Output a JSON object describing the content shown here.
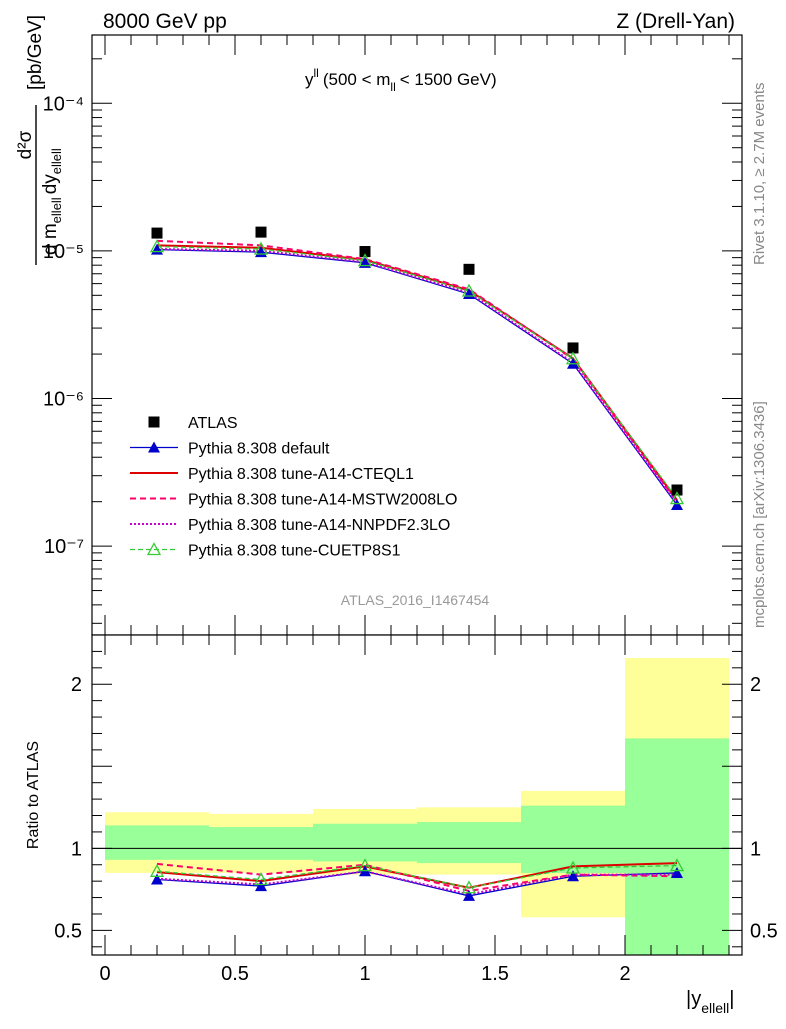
{
  "header": {
    "left": "8000 GeV pp",
    "right": "Z (Drell-Yan)"
  },
  "side_labels": {
    "rivet": "Rivet 3.1.10, ≥ 2.7M events",
    "mcplots": "mcplots.cern.ch [arXiv:1306.3436]"
  },
  "watermark": "ATLAS_2016_I1467454",
  "colors": {
    "atlas": "#000000",
    "default": "#0000cc",
    "cteql1": "#dd0000",
    "mstw": "#ff0066",
    "nnpdf": "#cc00cc",
    "cuetp8s1": "#33cc33",
    "band_yellow": "#ffff99",
    "band_green": "#99ff99"
  },
  "chart_data": [
    {
      "type": "line",
      "panel": "main",
      "title": "y^ll (500 < m_ll < 1500 GeV)",
      "title_parts": {
        "base": "y",
        "sup": "ll",
        "pre": "(500 < m",
        "sub": "ll",
        "post": "< 1500 GeV)"
      },
      "ylabel": "d²σ / d m_ellell dy_ellell [pb/GeV]",
      "ylabel_parts": {
        "num": "d²σ",
        "den_a": "d m",
        "den_sub_a": "ellell",
        "den_b": "dy",
        "den_sub_b": "ellell",
        "unit": "[pb/GeV]"
      },
      "yscale": "log",
      "ylim": [
        2.5e-08,
        0.00029
      ],
      "xlim": [
        -0.05,
        2.45
      ],
      "y_tick_labels": [
        "10⁻⁷",
        "10⁻⁶",
        "10⁻⁵",
        "10⁻⁴"
      ],
      "x": [
        0.2,
        0.6,
        1.0,
        1.4,
        1.8,
        2.2
      ],
      "series": [
        {
          "name": "ATLAS",
          "values": [
            1.32e-05,
            1.34e-05,
            9.9e-06,
            7.5e-06,
            2.2e-06,
            2.4e-07
          ]
        },
        {
          "name": "Pythia 8.308 default",
          "values": [
            1.02e-05,
            9.8e-06,
            8.3e-06,
            5.1e-06,
            1.72e-06,
            1.9e-07
          ]
        },
        {
          "name": "Pythia 8.308 tune-A14-CTEQL1",
          "values": [
            1.09e-05,
            1.05e-05,
            8.7e-06,
            5.4e-06,
            1.87e-06,
            2.05e-07
          ]
        },
        {
          "name": "Pythia 8.308 tune-A14-MSTW2008LO",
          "values": [
            1.17e-05,
            1.09e-05,
            8.8e-06,
            5.5e-06,
            1.85e-06,
            2e-07
          ]
        },
        {
          "name": "Pythia 8.308 tune-A14-NNPDF2.3LO",
          "values": [
            1.03e-05,
            1e-05,
            8.4e-06,
            5.2e-06,
            1.75e-06,
            1.95e-07
          ]
        },
        {
          "name": "Pythia 8.308 tune-CUETP8S1",
          "values": [
            1.07e-05,
            1.03e-05,
            8.6e-06,
            5.35e-06,
            1.86e-06,
            2.1e-07
          ]
        }
      ]
    },
    {
      "type": "line",
      "panel": "ratio",
      "ylabel": "Ratio to ATLAS",
      "xlabel": "|y_ellell|",
      "xlabel_parts": {
        "base": "|y",
        "sub": "ellell",
        "post": "|"
      },
      "ylim": [
        0.35,
        2.3
      ],
      "xlim": [
        -0.05,
        2.45
      ],
      "y_ticks": [
        0.5,
        1,
        2
      ],
      "y_tick_labels": [
        "0.5",
        "1",
        "2"
      ],
      "x_ticks": [
        0,
        0.5,
        1,
        1.5,
        2
      ],
      "x_tick_labels": [
        "0",
        "0.5",
        "1",
        "1.5",
        "2"
      ],
      "bins": [
        [
          0,
          0.4
        ],
        [
          0.4,
          0.8
        ],
        [
          0.8,
          1.2
        ],
        [
          1.2,
          1.6
        ],
        [
          1.6,
          2.0
        ],
        [
          2.0,
          2.4
        ]
      ],
      "band_yellow": [
        [
          0.85,
          1.22
        ],
        [
          0.85,
          1.21
        ],
        [
          0.84,
          1.24
        ],
        [
          0.84,
          1.25
        ],
        [
          0.58,
          1.35
        ],
        [
          0.35,
          2.16
        ]
      ],
      "band_green": [
        [
          0.93,
          1.14
        ],
        [
          0.93,
          1.13
        ],
        [
          0.92,
          1.15
        ],
        [
          0.91,
          1.16
        ],
        [
          0.85,
          1.26
        ],
        [
          0.35,
          1.67
        ]
      ],
      "x": [
        0.2,
        0.6,
        1.0,
        1.4,
        1.8,
        2.2
      ],
      "series": [
        {
          "name": "Pythia 8.308 default",
          "values": [
            0.81,
            0.77,
            0.86,
            0.71,
            0.83,
            0.85
          ]
        },
        {
          "name": "Pythia 8.308 tune-A14-CTEQL1",
          "values": [
            0.855,
            0.8,
            0.89,
            0.76,
            0.89,
            0.91
          ]
        },
        {
          "name": "Pythia 8.308 tune-A14-MSTW2008LO",
          "values": [
            0.905,
            0.84,
            0.9,
            0.74,
            0.84,
            0.83
          ]
        },
        {
          "name": "Pythia 8.308 tune-A14-NNPDF2.3LO",
          "values": [
            0.815,
            0.78,
            0.86,
            0.72,
            0.84,
            0.84
          ]
        },
        {
          "name": "Pythia 8.308 tune-CUETP8S1",
          "values": [
            0.86,
            0.81,
            0.895,
            0.76,
            0.88,
            0.895
          ]
        }
      ]
    }
  ]
}
